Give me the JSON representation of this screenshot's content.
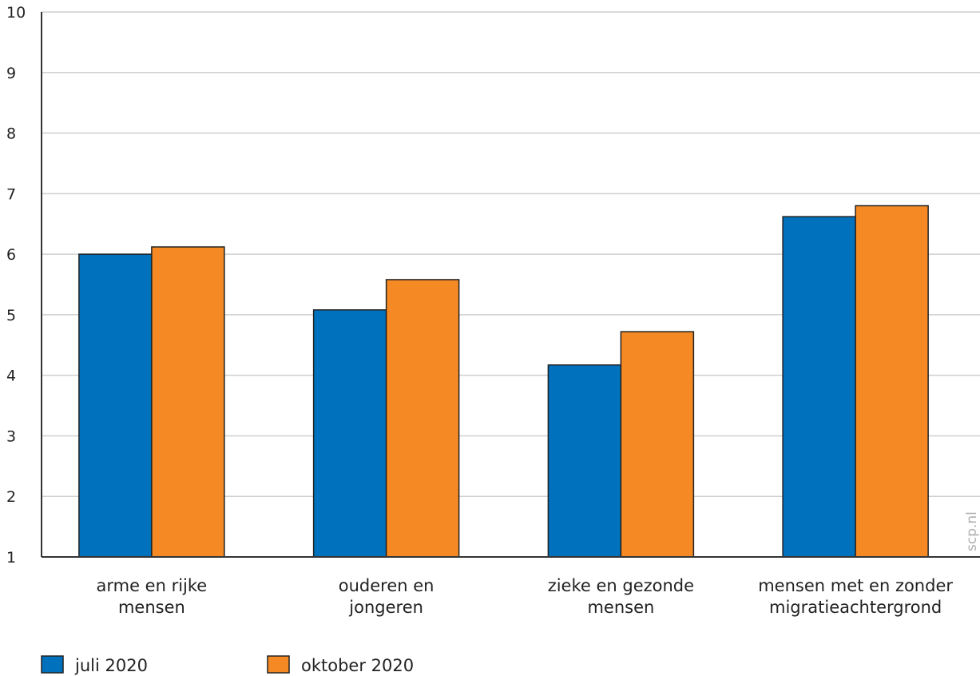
{
  "chart_data": {
    "type": "bar",
    "categories": [
      [
        "arme en rijke",
        "mensen"
      ],
      [
        "ouderen en",
        "jongeren"
      ],
      [
        "zieke en gezonde",
        "mensen"
      ],
      [
        "mensen met en zonder",
        "migratieachtergrond"
      ]
    ],
    "series": [
      {
        "name": "juli 2020",
        "color": "#0071bc",
        "values": [
          6.0,
          5.08,
          4.17,
          6.62
        ]
      },
      {
        "name": "oktober 2020",
        "color": "#f58a24",
        "values": [
          6.12,
          5.58,
          4.72,
          6.8
        ]
      }
    ],
    "ylim": [
      1,
      10
    ],
    "yticks": [
      1,
      2,
      3,
      4,
      5,
      6,
      7,
      8,
      9,
      10
    ],
    "grid": true,
    "legend_position": "bottom-left",
    "source": "scp.nl"
  }
}
